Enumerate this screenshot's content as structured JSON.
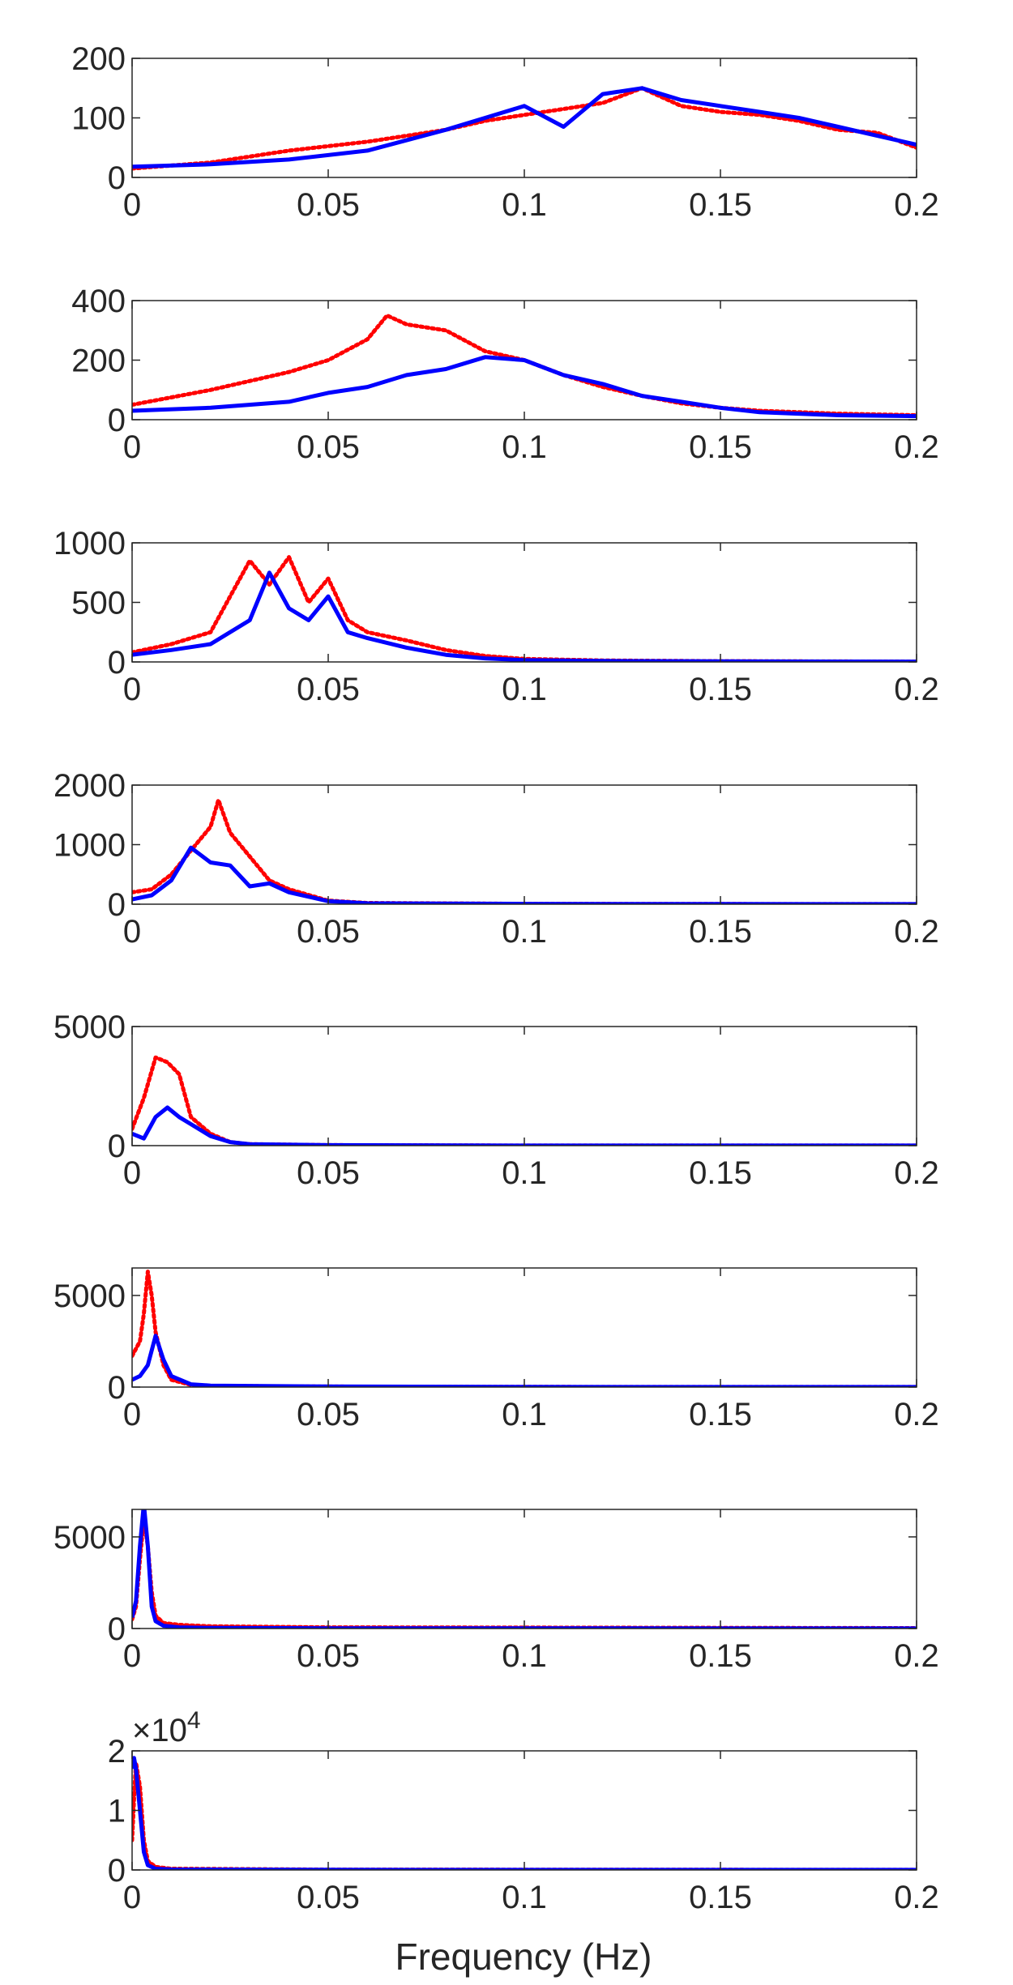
{
  "figure": {
    "xlabel": "Frequency (Hz)",
    "colors": {
      "series_solid": "#0000ff",
      "series_dotted": "#ff0000",
      "axis": "#262626"
    }
  },
  "chart_data": [
    {
      "type": "line",
      "xlim": [
        0,
        0.2
      ],
      "ylim": [
        0,
        200
      ],
      "xticks": [
        0,
        0.05,
        0.1,
        0.15,
        0.2
      ],
      "xtick_labels": [
        "0",
        "0.05",
        "0.1",
        "0.15",
        "0.2"
      ],
      "yticks": [
        0,
        100,
        200
      ],
      "ytick_labels": [
        "0",
        "100",
        "200"
      ],
      "grid": false,
      "series": [
        {
          "style": "solid-blue",
          "x": [
            0,
            0.02,
            0.04,
            0.06,
            0.08,
            0.09,
            0.1,
            0.11,
            0.12,
            0.13,
            0.14,
            0.15,
            0.16,
            0.17,
            0.18,
            0.19,
            0.2
          ],
          "y": [
            18,
            22,
            30,
            45,
            80,
            100,
            120,
            85,
            140,
            150,
            130,
            120,
            110,
            100,
            85,
            70,
            55
          ]
        },
        {
          "style": "dotted-red",
          "x": [
            0,
            0.02,
            0.04,
            0.06,
            0.08,
            0.09,
            0.1,
            0.11,
            0.12,
            0.13,
            0.14,
            0.15,
            0.16,
            0.17,
            0.18,
            0.19,
            0.2
          ],
          "y": [
            15,
            25,
            45,
            60,
            80,
            95,
            105,
            115,
            125,
            150,
            120,
            110,
            105,
            95,
            80,
            75,
            50
          ]
        }
      ]
    },
    {
      "type": "line",
      "xlim": [
        0,
        0.2
      ],
      "ylim": [
        0,
        400
      ],
      "xticks": [
        0,
        0.05,
        0.1,
        0.15,
        0.2
      ],
      "xtick_labels": [
        "0",
        "0.05",
        "0.1",
        "0.15",
        "0.2"
      ],
      "yticks": [
        0,
        200,
        400
      ],
      "ytick_labels": [
        "0",
        "200",
        "400"
      ],
      "grid": false,
      "series": [
        {
          "style": "solid-blue",
          "x": [
            0,
            0.02,
            0.04,
            0.05,
            0.06,
            0.07,
            0.08,
            0.09,
            0.1,
            0.11,
            0.12,
            0.13,
            0.14,
            0.15,
            0.16,
            0.18,
            0.2
          ],
          "y": [
            30,
            40,
            60,
            90,
            110,
            150,
            170,
            210,
            200,
            150,
            120,
            80,
            60,
            40,
            25,
            15,
            12
          ]
        },
        {
          "style": "dotted-red",
          "x": [
            0,
            0.02,
            0.04,
            0.05,
            0.06,
            0.065,
            0.07,
            0.08,
            0.09,
            0.1,
            0.11,
            0.12,
            0.13,
            0.14,
            0.15,
            0.16,
            0.18,
            0.2
          ],
          "y": [
            50,
            100,
            160,
            200,
            270,
            350,
            320,
            300,
            230,
            200,
            150,
            110,
            80,
            55,
            40,
            30,
            20,
            15
          ]
        }
      ]
    },
    {
      "type": "line",
      "xlim": [
        0,
        0.2
      ],
      "ylim": [
        0,
        1000
      ],
      "xticks": [
        0,
        0.05,
        0.1,
        0.15,
        0.2
      ],
      "xtick_labels": [
        "0",
        "0.05",
        "0.1",
        "0.15",
        "0.2"
      ],
      "yticks": [
        0,
        500,
        1000
      ],
      "ytick_labels": [
        "0",
        "500",
        "1000"
      ],
      "grid": false,
      "series": [
        {
          "style": "solid-blue",
          "x": [
            0,
            0.01,
            0.02,
            0.03,
            0.035,
            0.04,
            0.045,
            0.05,
            0.055,
            0.06,
            0.07,
            0.08,
            0.09,
            0.1,
            0.12,
            0.15,
            0.2
          ],
          "y": [
            60,
            100,
            150,
            350,
            750,
            450,
            350,
            550,
            250,
            200,
            120,
            60,
            30,
            15,
            8,
            5,
            3
          ]
        },
        {
          "style": "dotted-red",
          "x": [
            0,
            0.01,
            0.02,
            0.025,
            0.03,
            0.035,
            0.04,
            0.045,
            0.05,
            0.055,
            0.06,
            0.07,
            0.08,
            0.09,
            0.1,
            0.12,
            0.15,
            0.2
          ],
          "y": [
            80,
            150,
            250,
            550,
            850,
            650,
            880,
            500,
            700,
            350,
            250,
            180,
            100,
            50,
            25,
            12,
            6,
            3
          ]
        }
      ]
    },
    {
      "type": "line",
      "xlim": [
        0,
        0.2
      ],
      "ylim": [
        0,
        2000
      ],
      "xticks": [
        0,
        0.05,
        0.1,
        0.15,
        0.2
      ],
      "xtick_labels": [
        "0",
        "0.05",
        "0.1",
        "0.15",
        "0.2"
      ],
      "yticks": [
        0,
        1000,
        2000
      ],
      "ytick_labels": [
        "0",
        "1000",
        "2000"
      ],
      "grid": false,
      "series": [
        {
          "style": "solid-blue",
          "x": [
            0,
            0.005,
            0.01,
            0.015,
            0.02,
            0.025,
            0.03,
            0.035,
            0.04,
            0.05,
            0.06,
            0.1,
            0.15,
            0.2
          ],
          "y": [
            80,
            150,
            400,
            950,
            700,
            650,
            300,
            350,
            200,
            50,
            15,
            5,
            3,
            2
          ]
        },
        {
          "style": "dotted-red",
          "x": [
            0,
            0.005,
            0.01,
            0.015,
            0.02,
            0.022,
            0.025,
            0.03,
            0.035,
            0.04,
            0.05,
            0.06,
            0.1,
            0.15,
            0.2
          ],
          "y": [
            200,
            250,
            500,
            900,
            1300,
            1750,
            1200,
            800,
            400,
            250,
            60,
            20,
            5,
            3,
            2
          ]
        }
      ]
    },
    {
      "type": "line",
      "xlim": [
        0,
        0.2
      ],
      "ylim": [
        0,
        5000
      ],
      "xticks": [
        0,
        0.05,
        0.1,
        0.15,
        0.2
      ],
      "xtick_labels": [
        "0",
        "0.05",
        "0.1",
        "0.15",
        "0.2"
      ],
      "yticks": [
        0,
        5000
      ],
      "ytick_labels": [
        "0",
        "5000"
      ],
      "grid": false,
      "series": [
        {
          "style": "solid-blue",
          "x": [
            0,
            0.003,
            0.006,
            0.009,
            0.012,
            0.015,
            0.02,
            0.025,
            0.03,
            0.05,
            0.1,
            0.2
          ],
          "y": [
            500,
            300,
            1200,
            1600,
            1200,
            900,
            400,
            150,
            60,
            20,
            5,
            2
          ]
        },
        {
          "style": "dotted-red",
          "x": [
            0,
            0.003,
            0.006,
            0.009,
            0.012,
            0.015,
            0.02,
            0.025,
            0.03,
            0.05,
            0.1,
            0.2
          ],
          "y": [
            700,
            2000,
            3700,
            3500,
            3000,
            1200,
            500,
            150,
            60,
            20,
            5,
            2
          ]
        }
      ]
    },
    {
      "type": "line",
      "xlim": [
        0,
        0.2
      ],
      "ylim": [
        0,
        6500
      ],
      "xticks": [
        0,
        0.05,
        0.1,
        0.15,
        0.2
      ],
      "xtick_labels": [
        "0",
        "0.05",
        "0.1",
        "0.15",
        "0.2"
      ],
      "yticks": [
        0,
        5000
      ],
      "ytick_labels": [
        "0",
        "5000"
      ],
      "grid": false,
      "series": [
        {
          "style": "solid-blue",
          "x": [
            0,
            0.002,
            0.004,
            0.006,
            0.008,
            0.01,
            0.015,
            0.02,
            0.05,
            0.1,
            0.2
          ],
          "y": [
            400,
            600,
            1200,
            2800,
            1500,
            600,
            150,
            80,
            30,
            10,
            5
          ]
        },
        {
          "style": "dotted-red",
          "x": [
            0,
            0.002,
            0.003,
            0.004,
            0.005,
            0.006,
            0.008,
            0.01,
            0.015,
            0.02,
            0.05,
            0.1,
            0.2
          ],
          "y": [
            1700,
            2500,
            4000,
            6300,
            5000,
            3000,
            1200,
            400,
            120,
            60,
            25,
            10,
            5
          ]
        }
      ]
    },
    {
      "type": "line",
      "xlim": [
        0,
        0.2
      ],
      "ylim": [
        0,
        6500
      ],
      "xticks": [
        0,
        0.05,
        0.1,
        0.15,
        0.2
      ],
      "xtick_labels": [
        "0",
        "0.05",
        "0.1",
        "0.15",
        "0.2"
      ],
      "yticks": [
        0,
        5000
      ],
      "ytick_labels": [
        "0",
        "5000"
      ],
      "grid": false,
      "series": [
        {
          "style": "solid-blue",
          "x": [
            0,
            0.001,
            0.002,
            0.003,
            0.004,
            0.005,
            0.006,
            0.008,
            0.012,
            0.02,
            0.05,
            0.2
          ],
          "y": [
            600,
            1500,
            4500,
            6800,
            4500,
            1200,
            400,
            150,
            60,
            30,
            15,
            5
          ]
        },
        {
          "style": "dotted-red",
          "x": [
            0,
            0.001,
            0.002,
            0.003,
            0.004,
            0.005,
            0.006,
            0.008,
            0.012,
            0.02,
            0.05,
            0.2
          ],
          "y": [
            500,
            1200,
            3800,
            6000,
            4500,
            2000,
            700,
            300,
            200,
            120,
            60,
            20
          ]
        }
      ]
    },
    {
      "type": "line",
      "xlim": [
        0,
        0.2
      ],
      "ylim": [
        0,
        20000
      ],
      "xticks": [
        0,
        0.05,
        0.1,
        0.15,
        0.2
      ],
      "xtick_labels": [
        "0",
        "0.05",
        "0.1",
        "0.15",
        "0.2"
      ],
      "yticks": [
        0,
        10000,
        20000
      ],
      "ytick_labels": [
        "0",
        "1",
        "2"
      ],
      "exponent_label": "×10",
      "exponent_power": "4",
      "grid": false,
      "series": [
        {
          "style": "solid-blue",
          "x": [
            0,
            0.0005,
            0.001,
            0.002,
            0.003,
            0.004,
            0.006,
            0.01,
            0.05,
            0.2
          ],
          "y": [
            17000,
            18800,
            17000,
            10000,
            3000,
            800,
            200,
            80,
            30,
            10
          ]
        },
        {
          "style": "dotted-red",
          "x": [
            0,
            0.0005,
            0.001,
            0.002,
            0.003,
            0.004,
            0.006,
            0.01,
            0.05,
            0.2
          ],
          "y": [
            5000,
            12000,
            18000,
            14000,
            5000,
            1500,
            500,
            200,
            60,
            20
          ]
        }
      ]
    }
  ]
}
